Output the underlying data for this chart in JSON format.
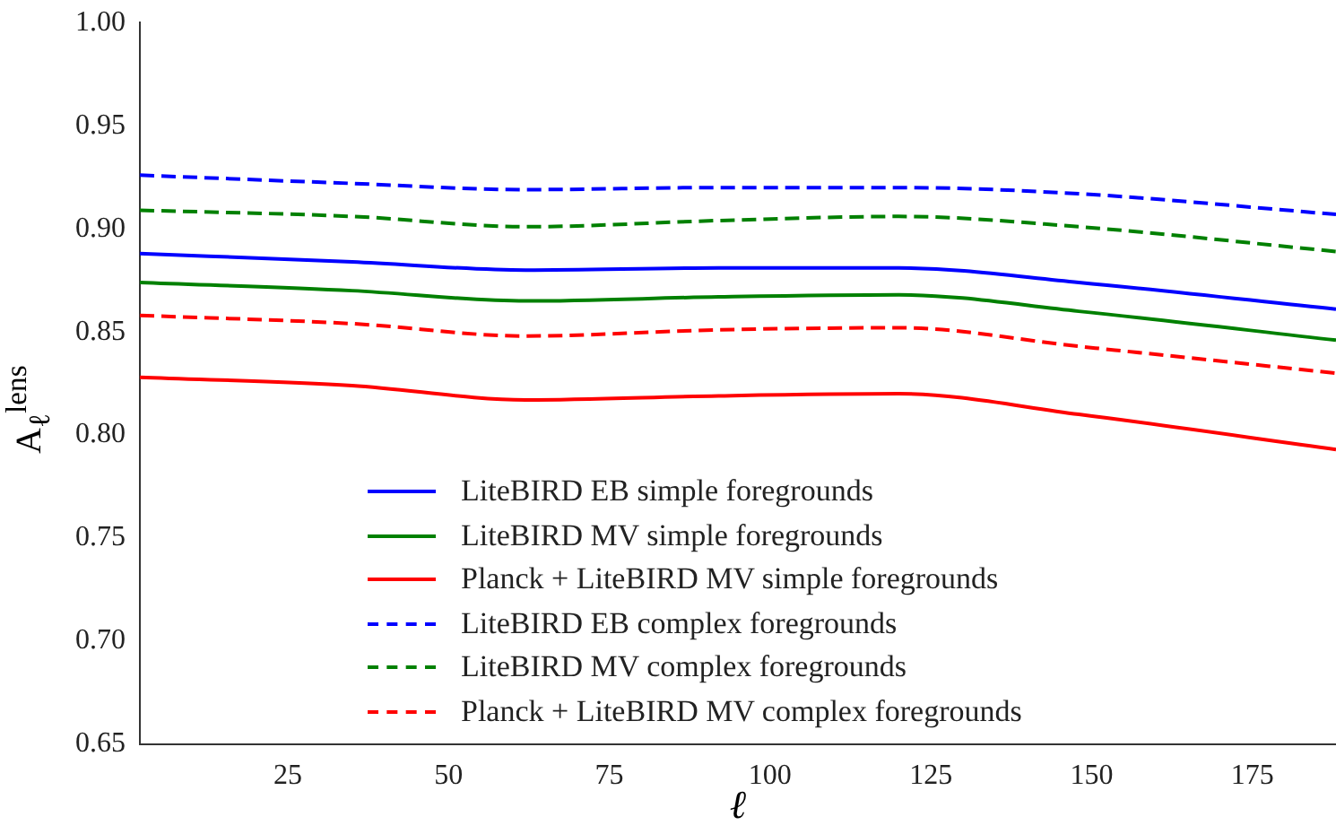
{
  "chart_data": {
    "type": "line",
    "xlabel": "ℓ",
    "ylabel": "A$_{ℓ}$$^{lens}$",
    "x": [
      2,
      35,
      62,
      92,
      120,
      148,
      188
    ],
    "series": [
      {
        "name": "LiteBIRD EB simple foregrounds",
        "color": "#0000ff",
        "line_style": "solid",
        "values": [
          0.888,
          0.884,
          0.88,
          0.881,
          0.881,
          0.874,
          0.861
        ]
      },
      {
        "name": "LiteBIRD MV simple foregrounds",
        "color": "#008000",
        "line_style": "solid",
        "values": [
          0.874,
          0.87,
          0.865,
          0.867,
          0.868,
          0.86,
          0.846
        ]
      },
      {
        "name": "Planck + LiteBIRD MV simple foregrounds",
        "color": "#ff0000",
        "line_style": "solid",
        "values": [
          0.828,
          0.824,
          0.817,
          0.819,
          0.82,
          0.81,
          0.793
        ]
      },
      {
        "name": "LiteBIRD EB complex foregrounds",
        "color": "#0000ff",
        "line_style": "dashed",
        "values": [
          0.926,
          0.922,
          0.919,
          0.92,
          0.92,
          0.917,
          0.907
        ]
      },
      {
        "name": "LiteBIRD MV complex foregrounds",
        "color": "#008000",
        "line_style": "dashed",
        "values": [
          0.909,
          0.906,
          0.901,
          0.904,
          0.906,
          0.901,
          0.889
        ]
      },
      {
        "name": "Planck + LiteBIRD MV complex foregrounds",
        "color": "#ff0000",
        "line_style": "dashed",
        "values": [
          0.858,
          0.854,
          0.848,
          0.851,
          0.852,
          0.843,
          0.83
        ]
      }
    ],
    "xlim": [
      2,
      188
    ],
    "xticks": [
      25,
      50,
      75,
      100,
      125,
      150,
      175
    ],
    "ylim": [
      0.65,
      1.0
    ],
    "yticks": [
      {
        "value": 0.65,
        "label": "0.65"
      },
      {
        "value": 0.7,
        "label": "0.70"
      },
      {
        "value": 0.75,
        "label": "0.75"
      },
      {
        "value": 0.8,
        "label": "0.80"
      },
      {
        "value": 0.85,
        "label": "0.85"
      },
      {
        "value": 0.9,
        "label": "0.90"
      },
      {
        "value": 0.95,
        "label": "0.95"
      },
      {
        "value": 1.0,
        "label": "1.00"
      }
    ],
    "grid": false,
    "legend": "lower center",
    "marker": "none"
  }
}
